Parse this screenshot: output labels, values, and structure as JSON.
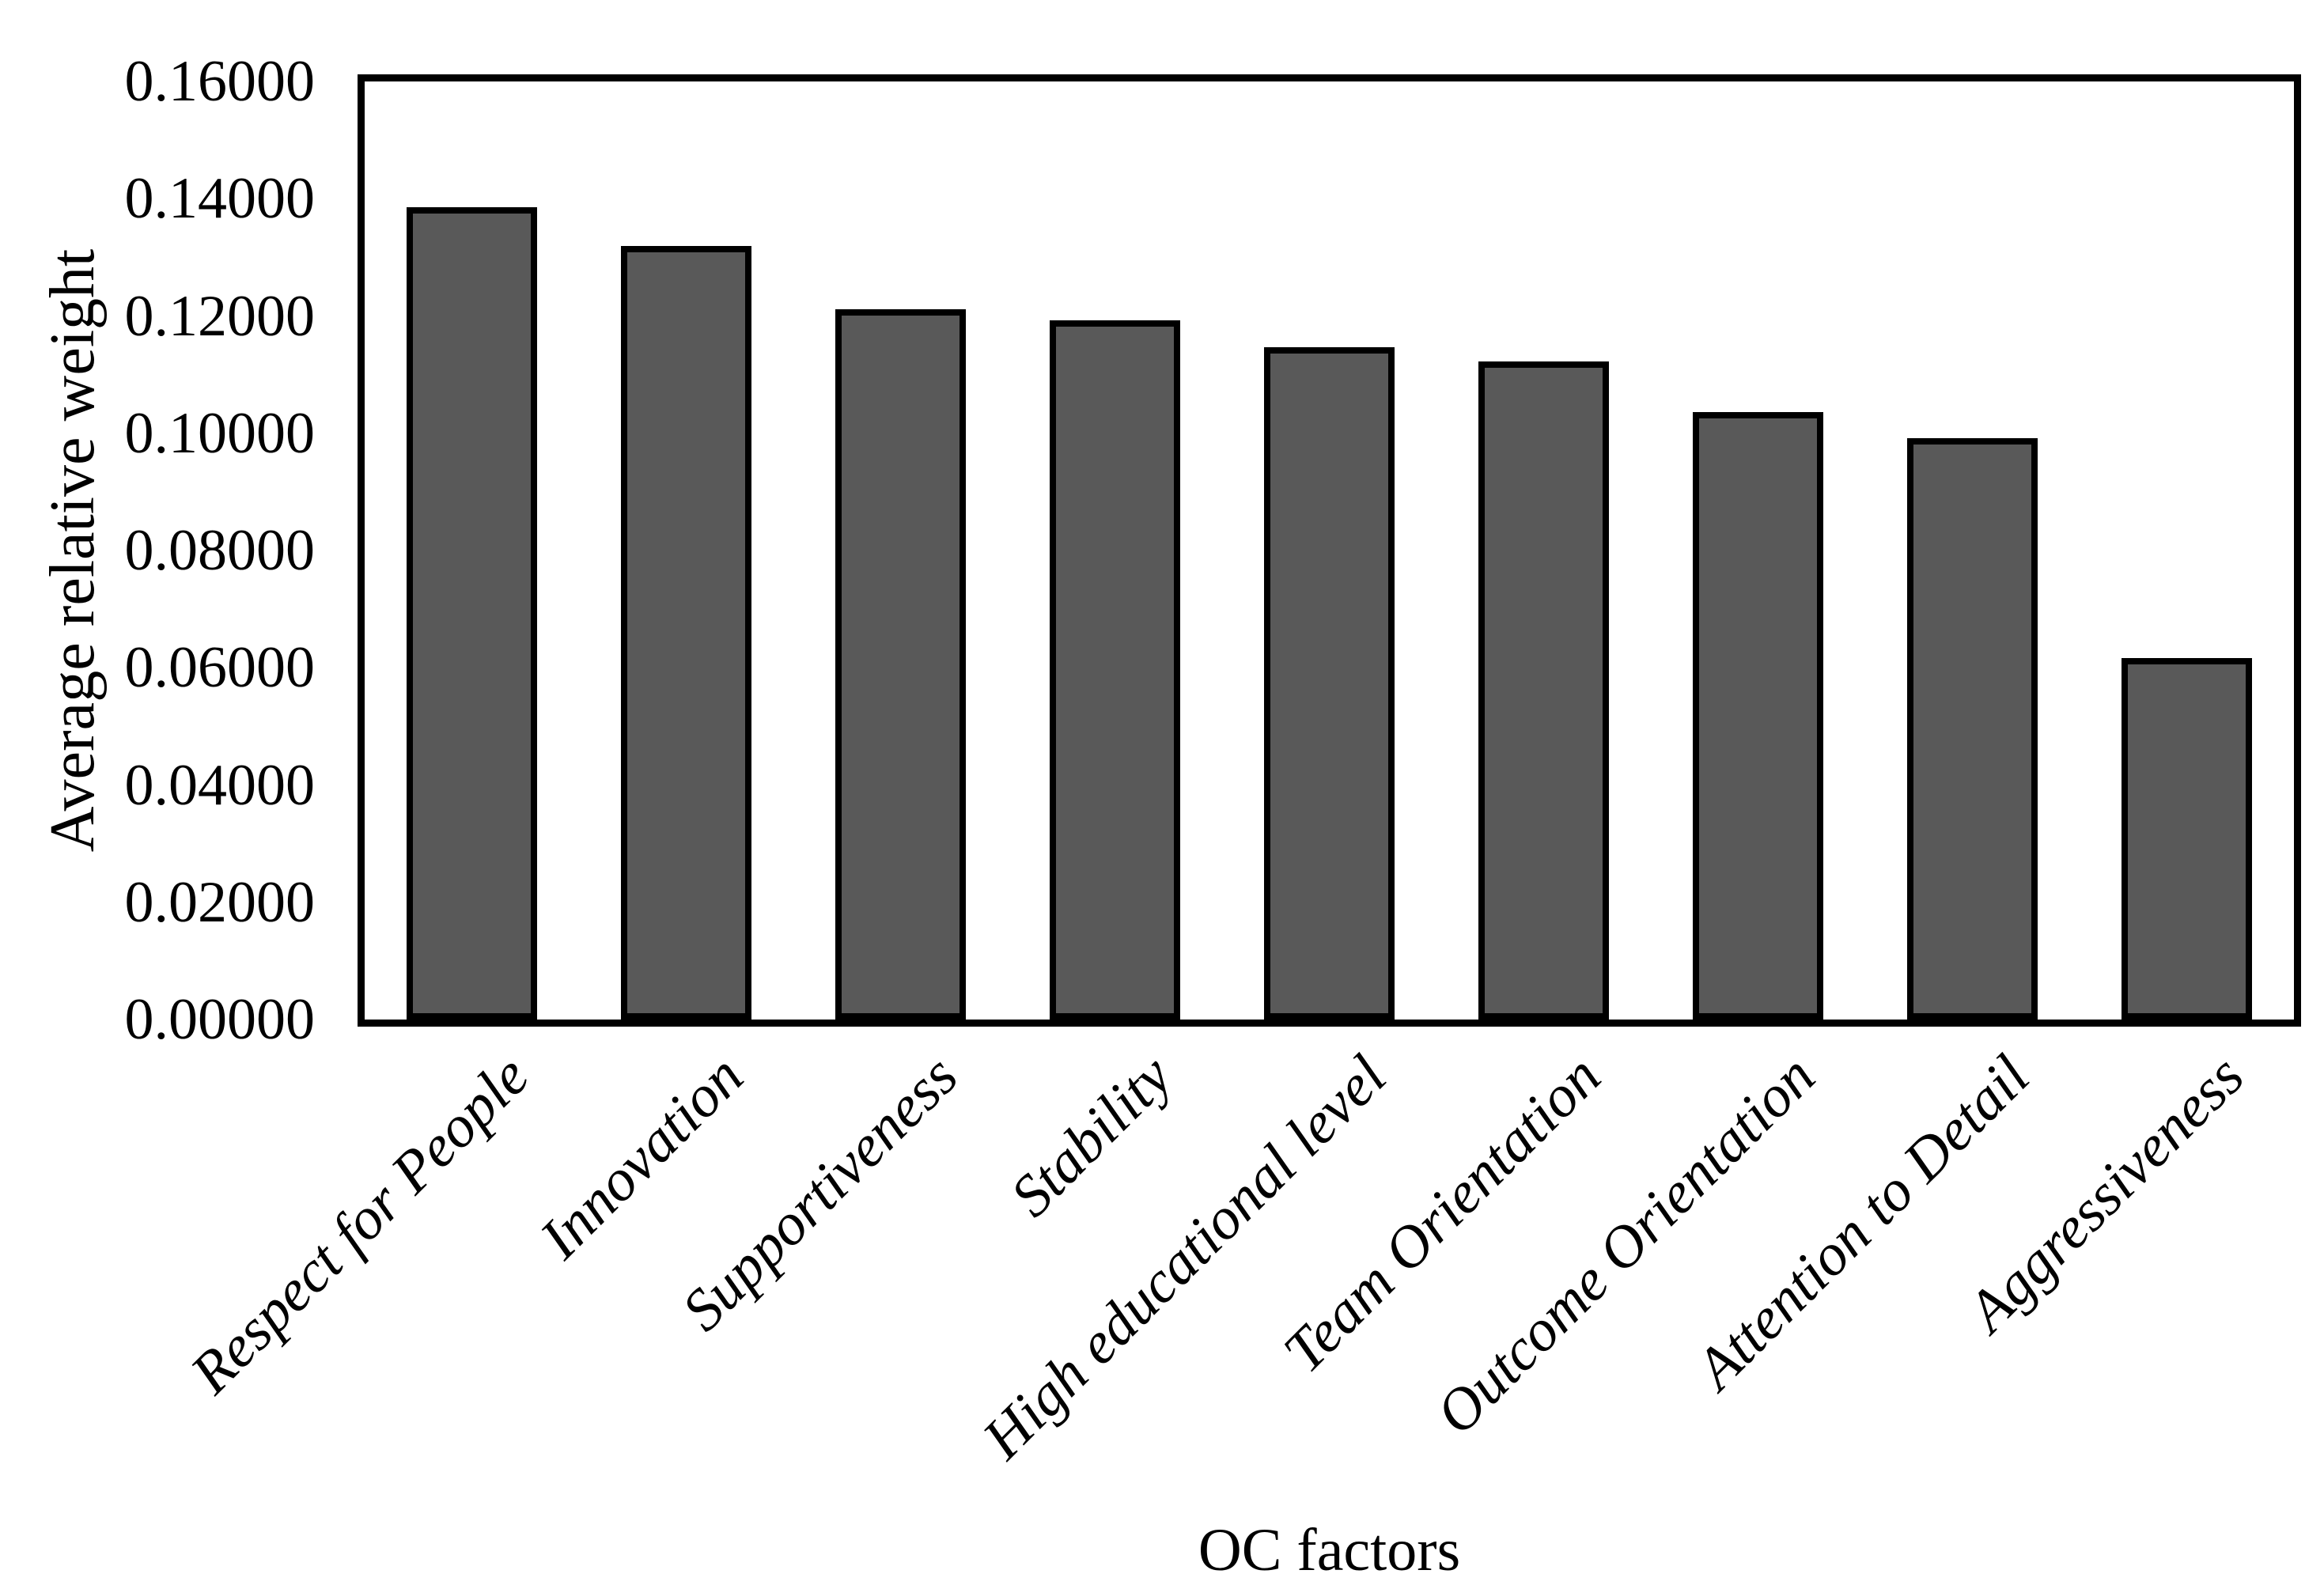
{
  "chart_data": {
    "type": "bar",
    "title": "",
    "xlabel": "OC factors",
    "ylabel": "Average relative weight",
    "categories": [
      "Respect for People",
      "Innovation",
      "Supportiveness",
      "Stability",
      "High educational level",
      "Team Orientation",
      "Outcome Orientation",
      "Attention to Detail",
      "Aggressiveness"
    ],
    "values": [
      0.1385,
      0.132,
      0.1212,
      0.1192,
      0.1147,
      0.1122,
      0.1036,
      0.0991,
      0.0616
    ],
    "ylim": [
      0,
      0.16
    ],
    "ytick_step": 0.02,
    "ytick_labels": [
      "0.00000",
      "0.02000",
      "0.04000",
      "0.06000",
      "0.08000",
      "0.10000",
      "0.12000",
      "0.14000",
      "0.16000"
    ],
    "grid": false,
    "legend": null,
    "bar_fill": "#595959",
    "bar_border": "#000000",
    "frame_color": "#000000",
    "background": "#ffffff"
  }
}
